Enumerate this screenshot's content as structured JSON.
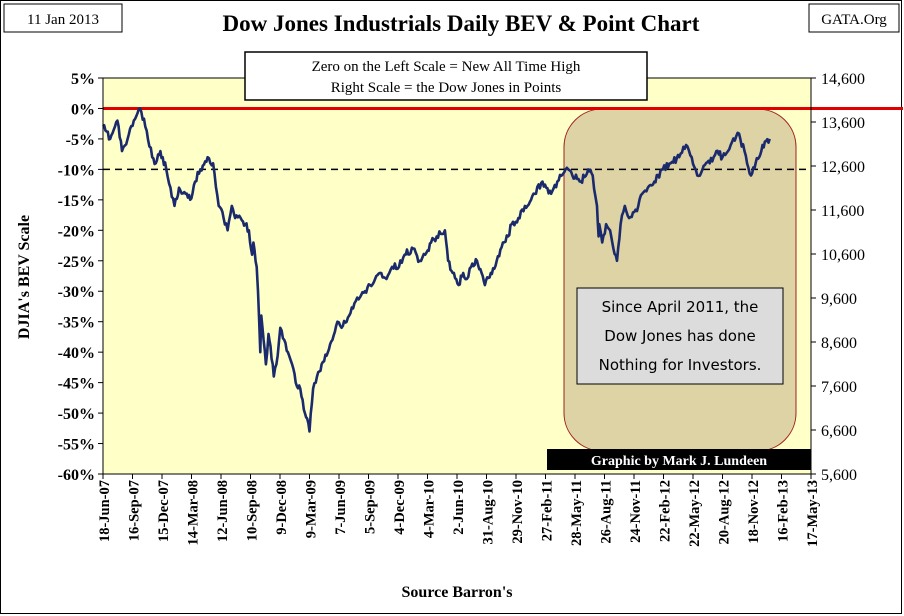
{
  "header": {
    "date_badge": "11 Jan 2013",
    "source_badge": "GATA.Org"
  },
  "chart_data": {
    "type": "line",
    "title": "Dow Jones Industrials Daily BEV & Point Chart",
    "ylabel": "DJIA's BEV Scale",
    "xlabel": "Source Barron's",
    "info_box": [
      "Zero on the Left Scale = New All Time High",
      "Right Scale = the Dow Jones in Points"
    ],
    "annotation": [
      "Since April 2011, the",
      "Dow Jones has done",
      "Nothing for Investors."
    ],
    "credit": "Graphic by Mark J. Lundeen",
    "ylim": [
      -60,
      5
    ],
    "y_ticks": [
      "5%",
      "0%",
      "-5%",
      "-10%",
      "-15%",
      "-20%",
      "-25%",
      "-30%",
      "-35%",
      "-40%",
      "-45%",
      "-50%",
      "-55%",
      "-60%"
    ],
    "y2lim": [
      5600,
      14600
    ],
    "y2_ticks": [
      "14,600",
      "13,600",
      "12,600",
      "11,600",
      "10,600",
      "9,600",
      "8,600",
      "7,600",
      "6,600",
      "5,600"
    ],
    "x_ticks": [
      "18-Jun-07",
      "16-Sep-07",
      "15-Dec-07",
      "14-Mar-08",
      "12-Jun-08",
      "10-Sep-08",
      "9-Dec-08",
      "9-Mar-09",
      "7-Jun-09",
      "5-Sep-09",
      "4-Dec-09",
      "4-Mar-10",
      "2-Jun-10",
      "31-Aug-10",
      "29-Nov-10",
      "27-Feb-11",
      "28-May-11",
      "26-Aug-11",
      "24-Nov-11",
      "22-Feb-12",
      "22-May-12",
      "20-Aug-12",
      "18-Nov-12",
      "16-Feb-13",
      "17-May-13"
    ],
    "reference_lines": [
      {
        "value": 0,
        "style": "solid",
        "color": "#e00000"
      },
      {
        "value": -10,
        "style": "dashed",
        "color": "#000000"
      }
    ],
    "series": [
      {
        "color": "#1a2a6c",
        "x": [
          "2007-06-18",
          "2007-07-10",
          "2007-08-01",
          "2007-08-15",
          "2007-09-01",
          "2007-09-20",
          "2007-10-09",
          "2007-10-25",
          "2007-11-15",
          "2007-11-26",
          "2007-12-10",
          "2007-12-28",
          "2008-01-10",
          "2008-01-22",
          "2008-02-05",
          "2008-02-25",
          "2008-03-10",
          "2008-03-25",
          "2008-04-10",
          "2008-05-02",
          "2008-05-19",
          "2008-06-05",
          "2008-06-20",
          "2008-07-02",
          "2008-07-15",
          "2008-07-25",
          "2008-08-11",
          "2008-08-25",
          "2008-09-05",
          "2008-09-15",
          "2008-09-19",
          "2008-09-29",
          "2008-10-03",
          "2008-10-10",
          "2008-10-13",
          "2008-10-20",
          "2008-10-27",
          "2008-11-04",
          "2008-11-10",
          "2008-11-20",
          "2008-11-28",
          "2008-12-10",
          "2008-12-22",
          "2009-01-02",
          "2009-01-15",
          "2009-01-26",
          "2009-02-09",
          "2009-02-23",
          "2009-03-09",
          "2009-03-20",
          "2009-04-01",
          "2009-04-15",
          "2009-05-04",
          "2009-05-18",
          "2009-06-02",
          "2009-06-15",
          "2009-07-08",
          "2009-07-24",
          "2009-08-10",
          "2009-08-25",
          "2009-09-10",
          "2009-09-25",
          "2009-10-14",
          "2009-10-30",
          "2009-11-16",
          "2009-12-07",
          "2009-12-24",
          "2010-01-19",
          "2010-02-08",
          "2010-02-25",
          "2010-03-15",
          "2010-04-01",
          "2010-04-26",
          "2010-05-06",
          "2010-05-20",
          "2010-06-07",
          "2010-06-21",
          "2010-07-02",
          "2010-07-15",
          "2010-08-02",
          "2010-08-16",
          "2010-08-26",
          "2010-09-13",
          "2010-10-01",
          "2010-10-20",
          "2010-11-05",
          "2010-11-16",
          "2010-12-06",
          "2011-01-03",
          "2011-01-25",
          "2011-02-18",
          "2011-03-01",
          "2011-03-16",
          "2011-04-04",
          "2011-04-29",
          "2011-05-20",
          "2011-06-15",
          "2011-07-07",
          "2011-07-21",
          "2011-08-03",
          "2011-08-08",
          "2011-08-10",
          "2011-08-19",
          "2011-08-31",
          "2011-09-12",
          "2011-09-22",
          "2011-10-03",
          "2011-10-14",
          "2011-10-27",
          "2011-11-09",
          "2011-11-25",
          "2011-12-07",
          "2011-12-19",
          "2012-01-05",
          "2012-01-25",
          "2012-02-20",
          "2012-03-15",
          "2012-04-10",
          "2012-05-01",
          "2012-05-18",
          "2012-06-04",
          "2012-06-20",
          "2012-07-12",
          "2012-08-01",
          "2012-08-20",
          "2012-09-14",
          "2012-10-05",
          "2012-10-26",
          "2012-11-15",
          "2012-11-29",
          "2012-12-10",
          "2012-12-20",
          "2013-01-11"
        ],
        "values": [
          -3,
          -5,
          -2,
          -7,
          -5,
          -2,
          0,
          -3,
          -8,
          -9,
          -7,
          -10,
          -13,
          -16,
          -13,
          -14,
          -15,
          -12,
          -10,
          -8,
          -9,
          -16,
          -18,
          -20,
          -16,
          -18,
          -18,
          -19,
          -20,
          -24,
          -22,
          -26,
          -30,
          -40,
          -34,
          -38,
          -42,
          -37,
          -39,
          -44,
          -42,
          -36,
          -38,
          -40,
          -42,
          -45,
          -46,
          -50,
          -53,
          -46,
          -44,
          -42,
          -40,
          -38,
          -35,
          -36,
          -34,
          -32,
          -31,
          -30,
          -29,
          -28,
          -27,
          -28,
          -26,
          -26,
          -24,
          -23,
          -25,
          -24,
          -22,
          -21,
          -20,
          -25,
          -27,
          -29,
          -27,
          -28,
          -26,
          -25,
          -27,
          -29,
          -27,
          -25,
          -22,
          -21,
          -19,
          -18,
          -16,
          -14,
          -12,
          -13,
          -14,
          -12,
          -10,
          -11,
          -12,
          -10,
          -11,
          -16,
          -21,
          -19,
          -22,
          -19,
          -20,
          -23,
          -25,
          -19,
          -16,
          -18,
          -17,
          -16,
          -14,
          -13,
          -12,
          -10,
          -9,
          -8,
          -6,
          -8,
          -11,
          -10,
          -9,
          -7,
          -8,
          -6,
          -4,
          -7,
          -11,
          -9,
          -8,
          -6,
          -5
        ]
      }
    ]
  }
}
